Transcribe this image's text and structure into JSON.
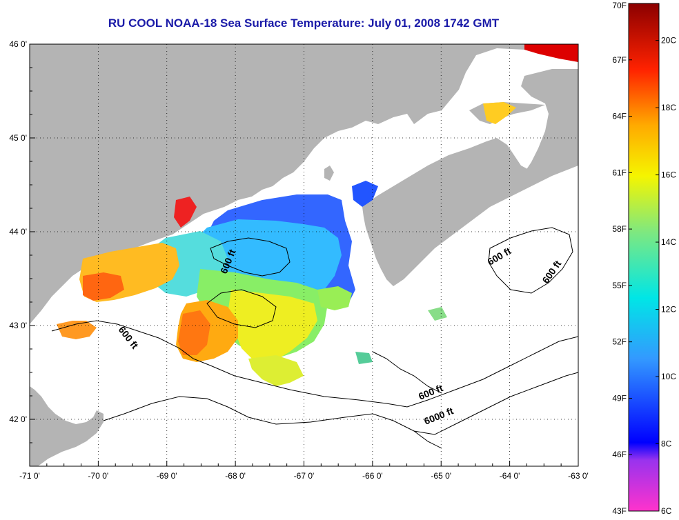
{
  "title": "RU COOL  NOAA-18  Sea Surface Temperature:  July 01, 2008 1742 GMT",
  "map": {
    "lon_ticks": [
      "-71 0'",
      "-70 0'",
      "-69 0'",
      "-68 0'",
      "-67 0'",
      "-66 0'",
      "-65 0'",
      "-64 0'",
      "-63 0'"
    ],
    "lat_ticks": [
      "46 0'",
      "45 0'",
      "44 0'",
      "43 0'",
      "42 0'"
    ],
    "lon_range": [
      -71,
      -63
    ],
    "lat_range": [
      41.5,
      46
    ],
    "grid": true,
    "contour_labels": [
      {
        "text": "600 ft"
      },
      {
        "text": "600 ft"
      },
      {
        "text": "600 ft"
      },
      {
        "text": "600 ft"
      },
      {
        "text": "600 ft"
      },
      {
        "text": "6000 ft"
      }
    ],
    "colors": {
      "land": "#b4b4b4",
      "no_data": "#ffffff",
      "title": "#1a1aa8"
    }
  },
  "colorbar": {
    "f_ticks": [
      "70F",
      "67F",
      "64F",
      "61F",
      "58F",
      "55F",
      "52F",
      "49F",
      "46F",
      "43F"
    ],
    "c_ticks": [
      "20C",
      "18C",
      "16C",
      "14C",
      "12C",
      "10C",
      "8C",
      "6C"
    ],
    "range_c": [
      6,
      21.1
    ],
    "range_f": [
      43,
      70
    ]
  }
}
